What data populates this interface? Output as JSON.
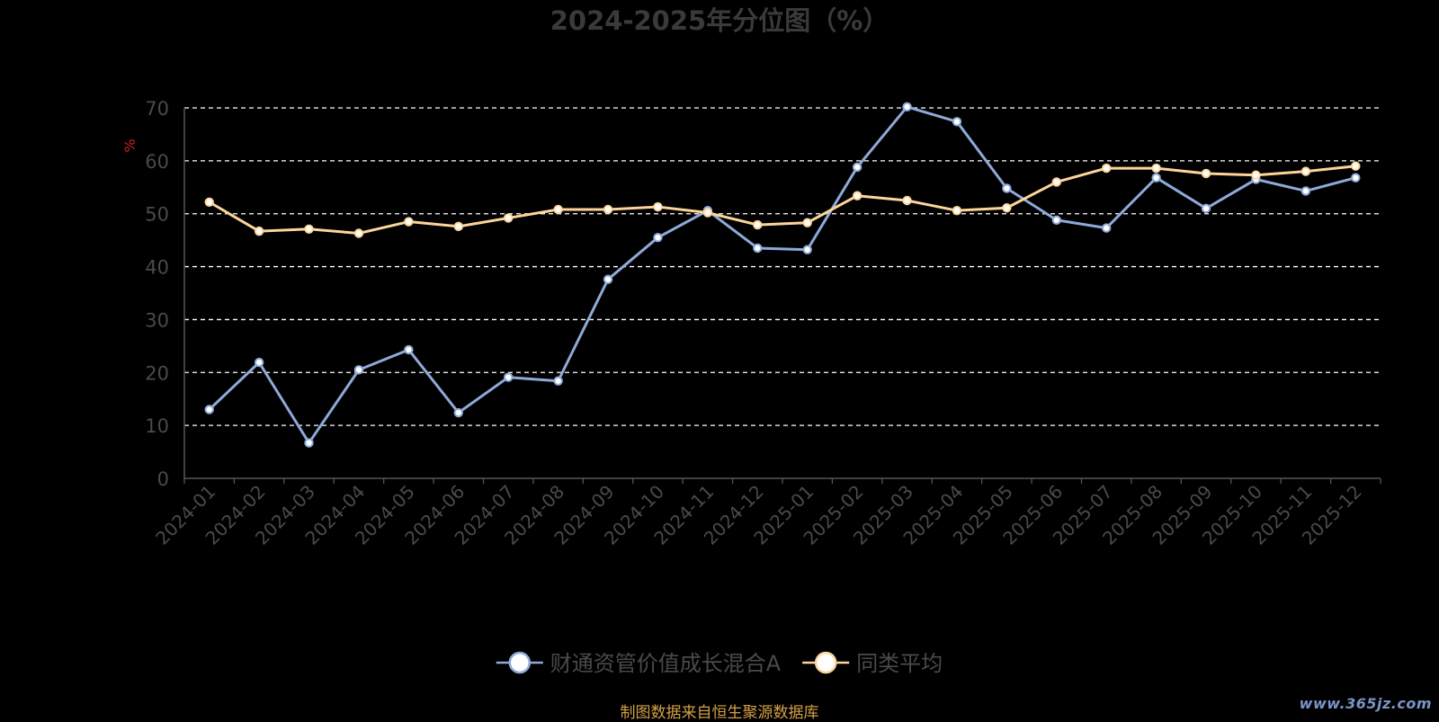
{
  "colors": {
    "background": "#000000",
    "title": "#3a3a3a",
    "axis": "#555555",
    "tick_text": "#4a4a4a",
    "grid": "#ffffff",
    "ylabel": "#cc2222",
    "legend_text": "#4a4a4a",
    "source": "#d4a045",
    "watermark": "#7b93c7"
  },
  "footer": {
    "source": "制图数据来自恒生聚源数据库",
    "watermark": "www.365jz.com"
  },
  "chart_data": {
    "type": "line",
    "title": "2024-2025年分位图（%）",
    "xlabel": "",
    "ylabel": "%",
    "ylim": [
      0,
      70
    ],
    "yticks": [
      0,
      10,
      20,
      30,
      40,
      50,
      60,
      70
    ],
    "grid": true,
    "legend_position": "bottom",
    "categories": [
      "2024-01",
      "2024-02",
      "2024-03",
      "2024-04",
      "2024-05",
      "2024-06",
      "2024-07",
      "2024-08",
      "2024-09",
      "2024-10",
      "2024-11",
      "2024-12",
      "2025-01",
      "2025-02",
      "2025-03",
      "2025-04",
      "2025-05",
      "2025-06",
      "2025-07",
      "2025-08",
      "2025-09",
      "2025-10",
      "2025-11",
      "2025-12"
    ],
    "series": [
      {
        "name": "财通资管价值成长混合A",
        "color": "#8eaad8",
        "values": [
          13.0,
          21.9,
          6.7,
          20.5,
          24.3,
          12.4,
          19.1,
          18.4,
          37.6,
          45.5,
          50.6,
          43.5,
          43.2,
          58.8,
          70.2,
          67.4,
          54.8,
          48.8,
          47.3,
          56.8,
          51.0,
          56.5,
          54.3,
          56.8
        ]
      },
      {
        "name": "同类平均",
        "color": "#fdd59a",
        "values": [
          52.2,
          46.7,
          47.1,
          46.3,
          48.5,
          47.6,
          49.2,
          50.8,
          50.8,
          51.3,
          50.2,
          47.9,
          48.3,
          53.4,
          52.5,
          50.6,
          51.1,
          56.0,
          58.6,
          58.6,
          57.6,
          57.3,
          58.0,
          59.0
        ]
      }
    ]
  }
}
